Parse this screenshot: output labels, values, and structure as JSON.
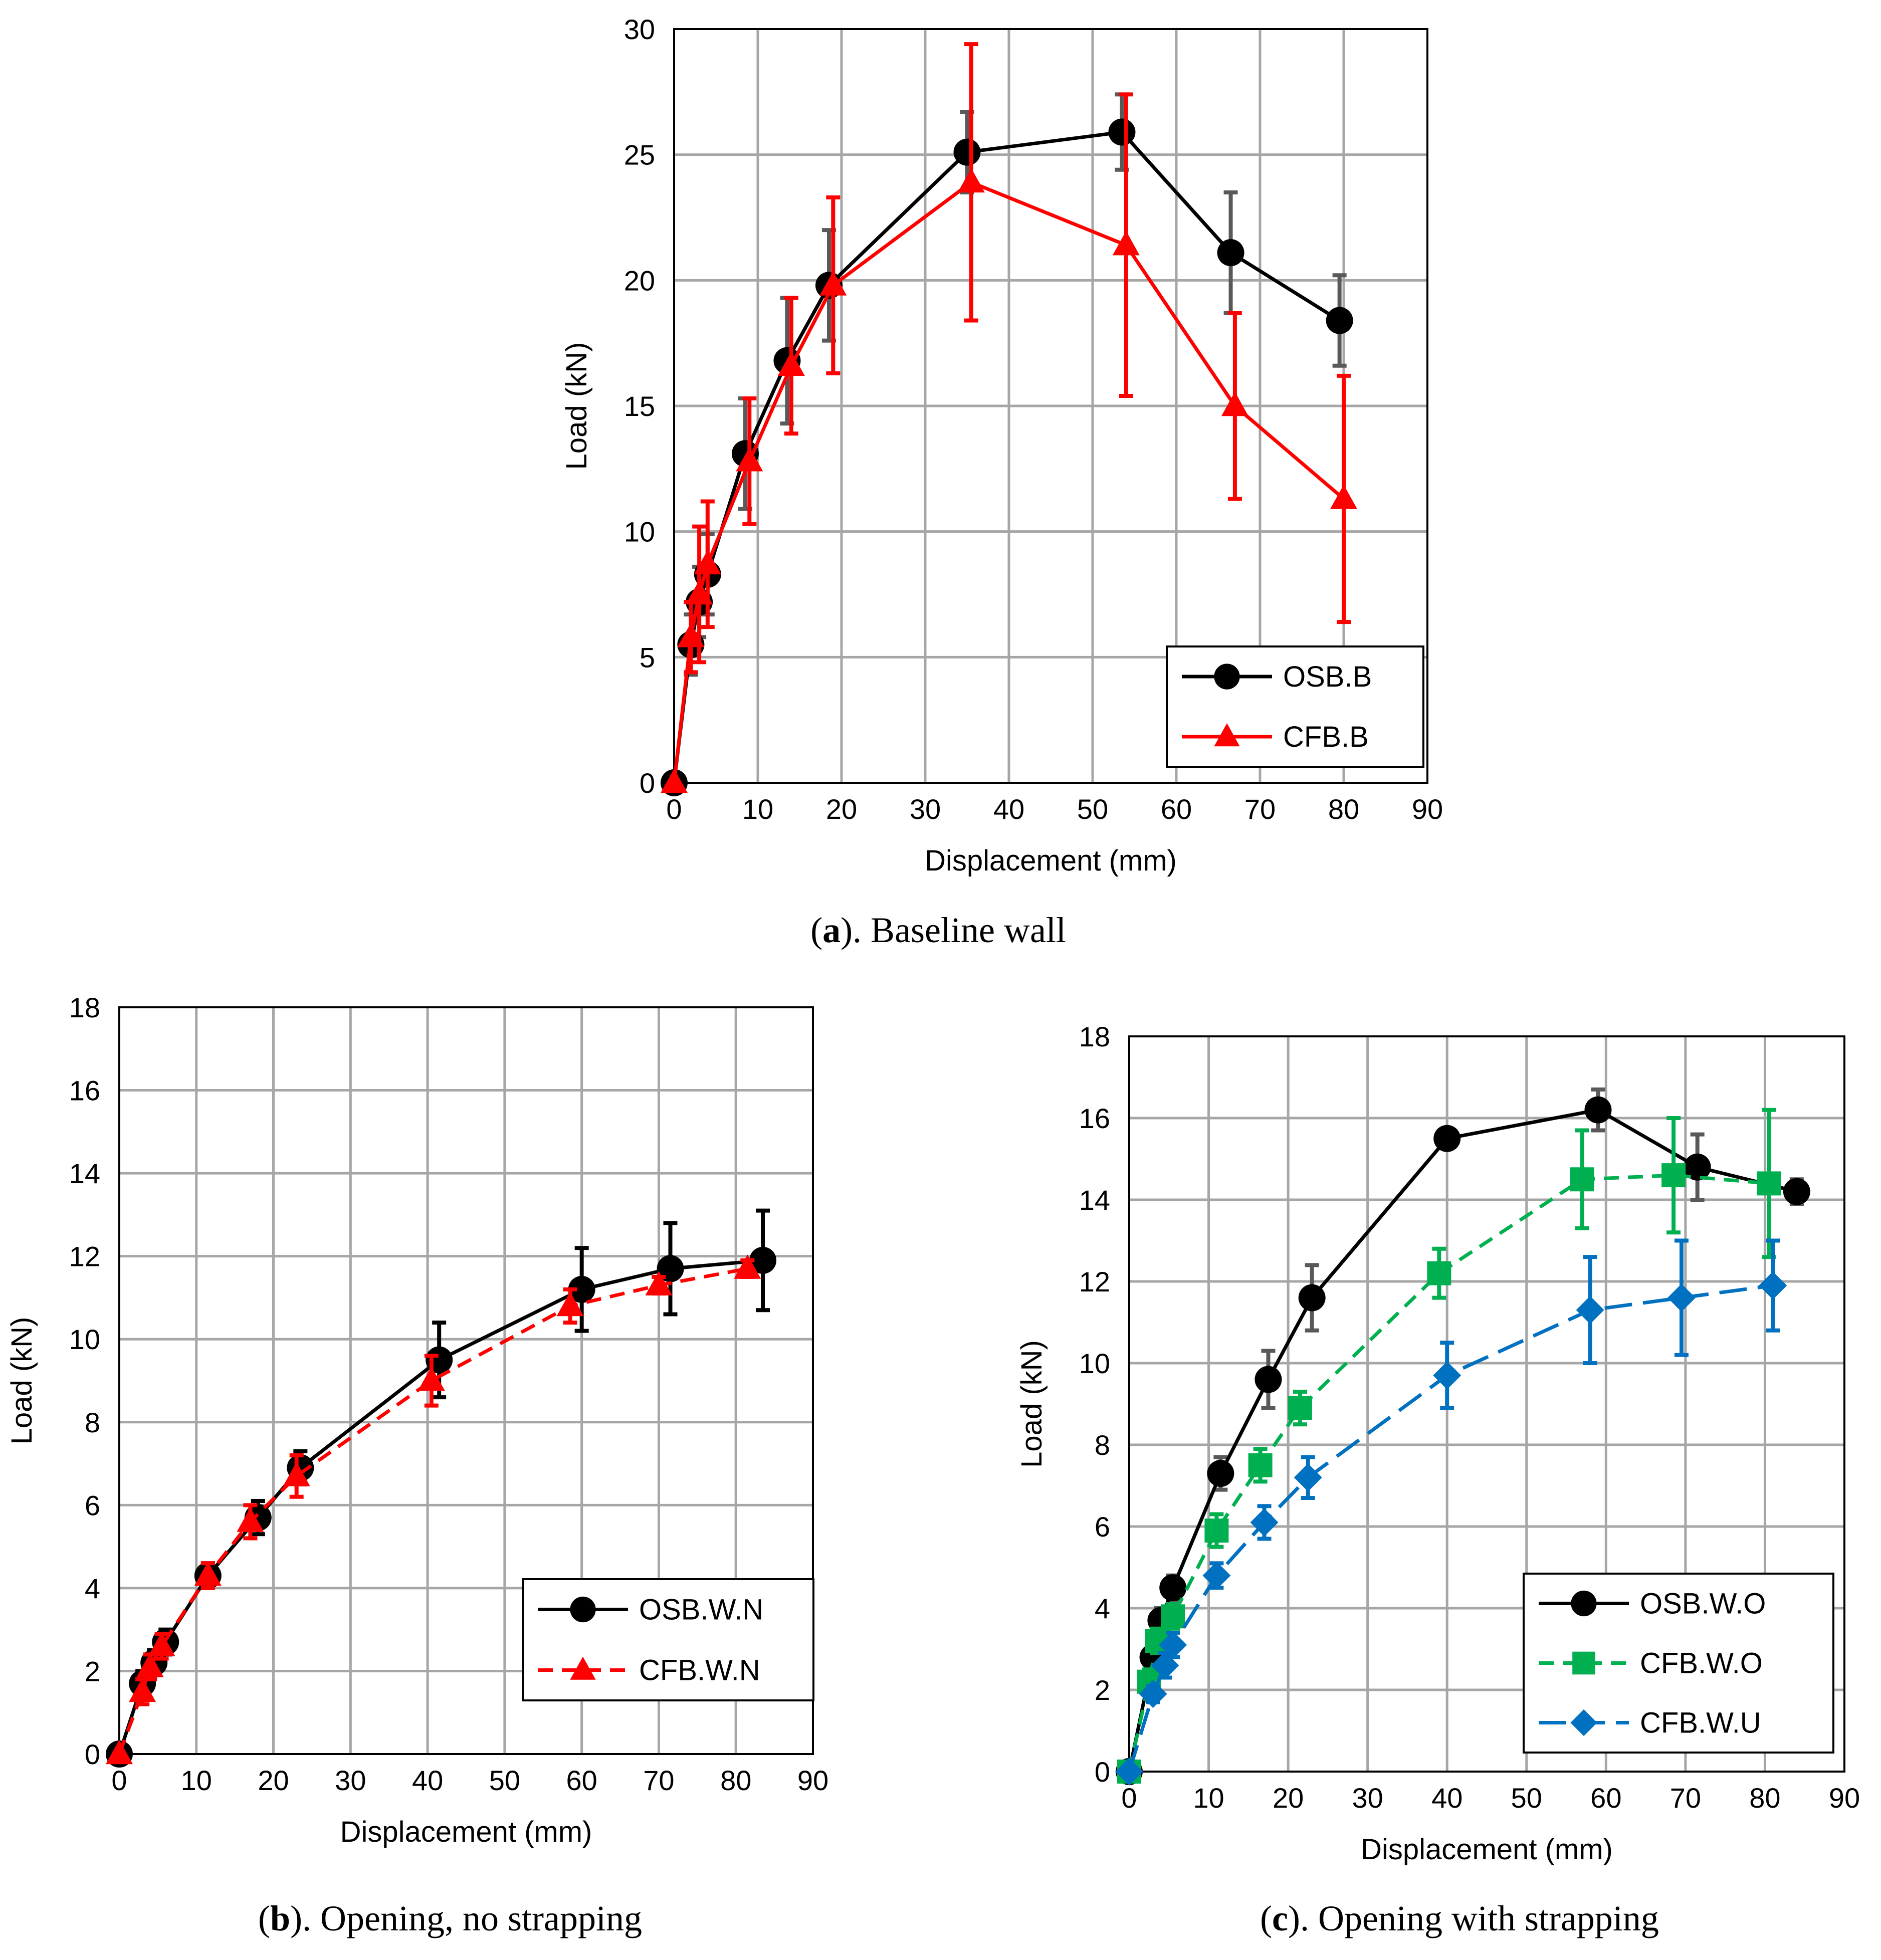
{
  "chart_data": [
    {
      "type": "line",
      "panel": "a",
      "caption_letter": "a",
      "caption_rest": "). Baseline wall",
      "xlabel": "Displacement (mm)",
      "ylabel": "Load (kN)",
      "xlim": [
        0,
        90
      ],
      "ylim": [
        0,
        30
      ],
      "xticks": [
        0,
        10,
        20,
        30,
        40,
        50,
        60,
        70,
        80,
        90
      ],
      "yticks": [
        0,
        5,
        10,
        15,
        20,
        25,
        30
      ],
      "grid": true,
      "legend_position": "bottom-right",
      "series": [
        {
          "name": "OSB.B",
          "color": "#000000",
          "errcolor": "#595959",
          "marker": "circle",
          "dash": "solid",
          "x": [
            0,
            2,
            3,
            4,
            8.5,
            13.5,
            18.5,
            35,
            53.5,
            66.5,
            79.5
          ],
          "y": [
            0,
            5.5,
            7.2,
            8.3,
            13.1,
            16.8,
            19.8,
            25.1,
            25.9,
            21.1,
            18.4
          ],
          "err": [
            0,
            1.2,
            1.4,
            1.6,
            2.2,
            2.5,
            2.2,
            1.6,
            1.5,
            2.4,
            1.8
          ]
        },
        {
          "name": "CFB.B",
          "color": "#ff0000",
          "errcolor": "#ff0000",
          "marker": "triangle",
          "dash": "solid",
          "x": [
            0,
            2,
            3,
            4,
            9,
            14,
            19,
            35.5,
            54,
            67,
            80
          ],
          "y": [
            0,
            5.8,
            7.5,
            8.7,
            12.8,
            16.6,
            19.8,
            23.9,
            21.4,
            15.0,
            11.3
          ],
          "err": [
            0,
            1.4,
            2.7,
            2.5,
            2.5,
            2.7,
            3.5,
            5.5,
            6.0,
            3.7,
            4.9
          ]
        }
      ]
    },
    {
      "type": "line",
      "panel": "b",
      "caption_letter": "b",
      "caption_rest": "). Opening, no strapping",
      "xlabel": "Displacement (mm)",
      "ylabel": "Load (kN)",
      "xlim": [
        0,
        90
      ],
      "ylim": [
        0,
        18
      ],
      "xticks": [
        0,
        10,
        20,
        30,
        40,
        50,
        60,
        70,
        80,
        90
      ],
      "yticks": [
        0,
        2,
        4,
        6,
        8,
        10,
        12,
        14,
        16,
        18
      ],
      "grid": true,
      "legend_position": "bottom-right",
      "series": [
        {
          "name": "OSB.W.N",
          "color": "#000000",
          "errcolor": "#000000",
          "marker": "circle",
          "dash": "solid",
          "x": [
            0,
            3,
            4.5,
            6,
            11.5,
            18,
            23.5,
            41.5,
            60,
            71.5,
            83.5
          ],
          "y": [
            0,
            1.7,
            2.2,
            2.7,
            4.3,
            5.7,
            6.9,
            9.5,
            11.2,
            11.7,
            11.9
          ],
          "err": [
            0,
            0.3,
            0.3,
            0.3,
            0.3,
            0.4,
            0.4,
            0.9,
            1.0,
            1.1,
            1.2
          ]
        },
        {
          "name": "CFB.W.N",
          "color": "#ff0000",
          "errcolor": "#ff0000",
          "marker": "triangle",
          "dash": "dashed",
          "x": [
            0,
            3,
            4,
            5.5,
            11.5,
            17,
            23,
            40.5,
            58.5,
            70,
            81.5
          ],
          "y": [
            0,
            1.5,
            2.1,
            2.6,
            4.3,
            5.6,
            6.7,
            9.0,
            10.8,
            11.3,
            11.7
          ],
          "err": [
            0,
            0.3,
            0.3,
            0.3,
            0.3,
            0.4,
            0.5,
            0.6,
            0.4,
            0.2,
            0.2
          ]
        }
      ]
    },
    {
      "type": "line",
      "panel": "c",
      "caption_letter": "c",
      "caption_rest": "). Opening with strapping",
      "xlabel": "Displacement (mm)",
      "ylabel": "Load (kN)",
      "xlim": [
        0,
        90
      ],
      "ylim": [
        0,
        18
      ],
      "xticks": [
        0,
        10,
        20,
        30,
        40,
        50,
        60,
        70,
        80,
        90
      ],
      "yticks": [
        0,
        2,
        4,
        6,
        8,
        10,
        12,
        14,
        16,
        18
      ],
      "grid": true,
      "legend_position": "bottom-right",
      "series": [
        {
          "name": "OSB.W.O",
          "color": "#000000",
          "errcolor": "#595959",
          "marker": "circle",
          "dash": "solid",
          "x": [
            0,
            3,
            4,
            5.5,
            11.5,
            17.5,
            23,
            40,
            59,
            71.5,
            84
          ],
          "y": [
            0,
            2.8,
            3.7,
            4.5,
            7.3,
            9.6,
            11.6,
            15.5,
            16.2,
            14.8,
            14.2
          ],
          "err": [
            0,
            0.3,
            0.3,
            0.3,
            0.4,
            0.7,
            0.8,
            0.2,
            0.5,
            0.8,
            0.3
          ]
        },
        {
          "name": "CFB.W.O",
          "color": "#00b050",
          "errcolor": "#00b050",
          "marker": "square",
          "dash": "dashed",
          "x": [
            0,
            2.5,
            3.5,
            5.5,
            11,
            16.5,
            21.5,
            39,
            57,
            68.5,
            80.5
          ],
          "y": [
            0,
            2.2,
            3.2,
            3.8,
            5.9,
            7.5,
            8.9,
            12.2,
            14.5,
            14.6,
            14.4
          ],
          "err": [
            0,
            0.3,
            0.3,
            0.3,
            0.4,
            0.4,
            0.4,
            0.6,
            1.2,
            1.4,
            1.8
          ]
        },
        {
          "name": "CFB.W.U",
          "color": "#0070c0",
          "errcolor": "#0070c0",
          "marker": "diamond",
          "dash": "longdash",
          "x": [
            0,
            3,
            4.5,
            5.5,
            11,
            17,
            22.5,
            40,
            58,
            69.5,
            81
          ],
          "y": [
            0,
            1.9,
            2.6,
            3.1,
            4.8,
            6.1,
            7.2,
            9.7,
            11.3,
            11.6,
            11.9
          ],
          "err": [
            0,
            0.2,
            0.3,
            0.3,
            0.3,
            0.4,
            0.5,
            0.8,
            1.3,
            1.4,
            1.1
          ]
        }
      ]
    }
  ]
}
